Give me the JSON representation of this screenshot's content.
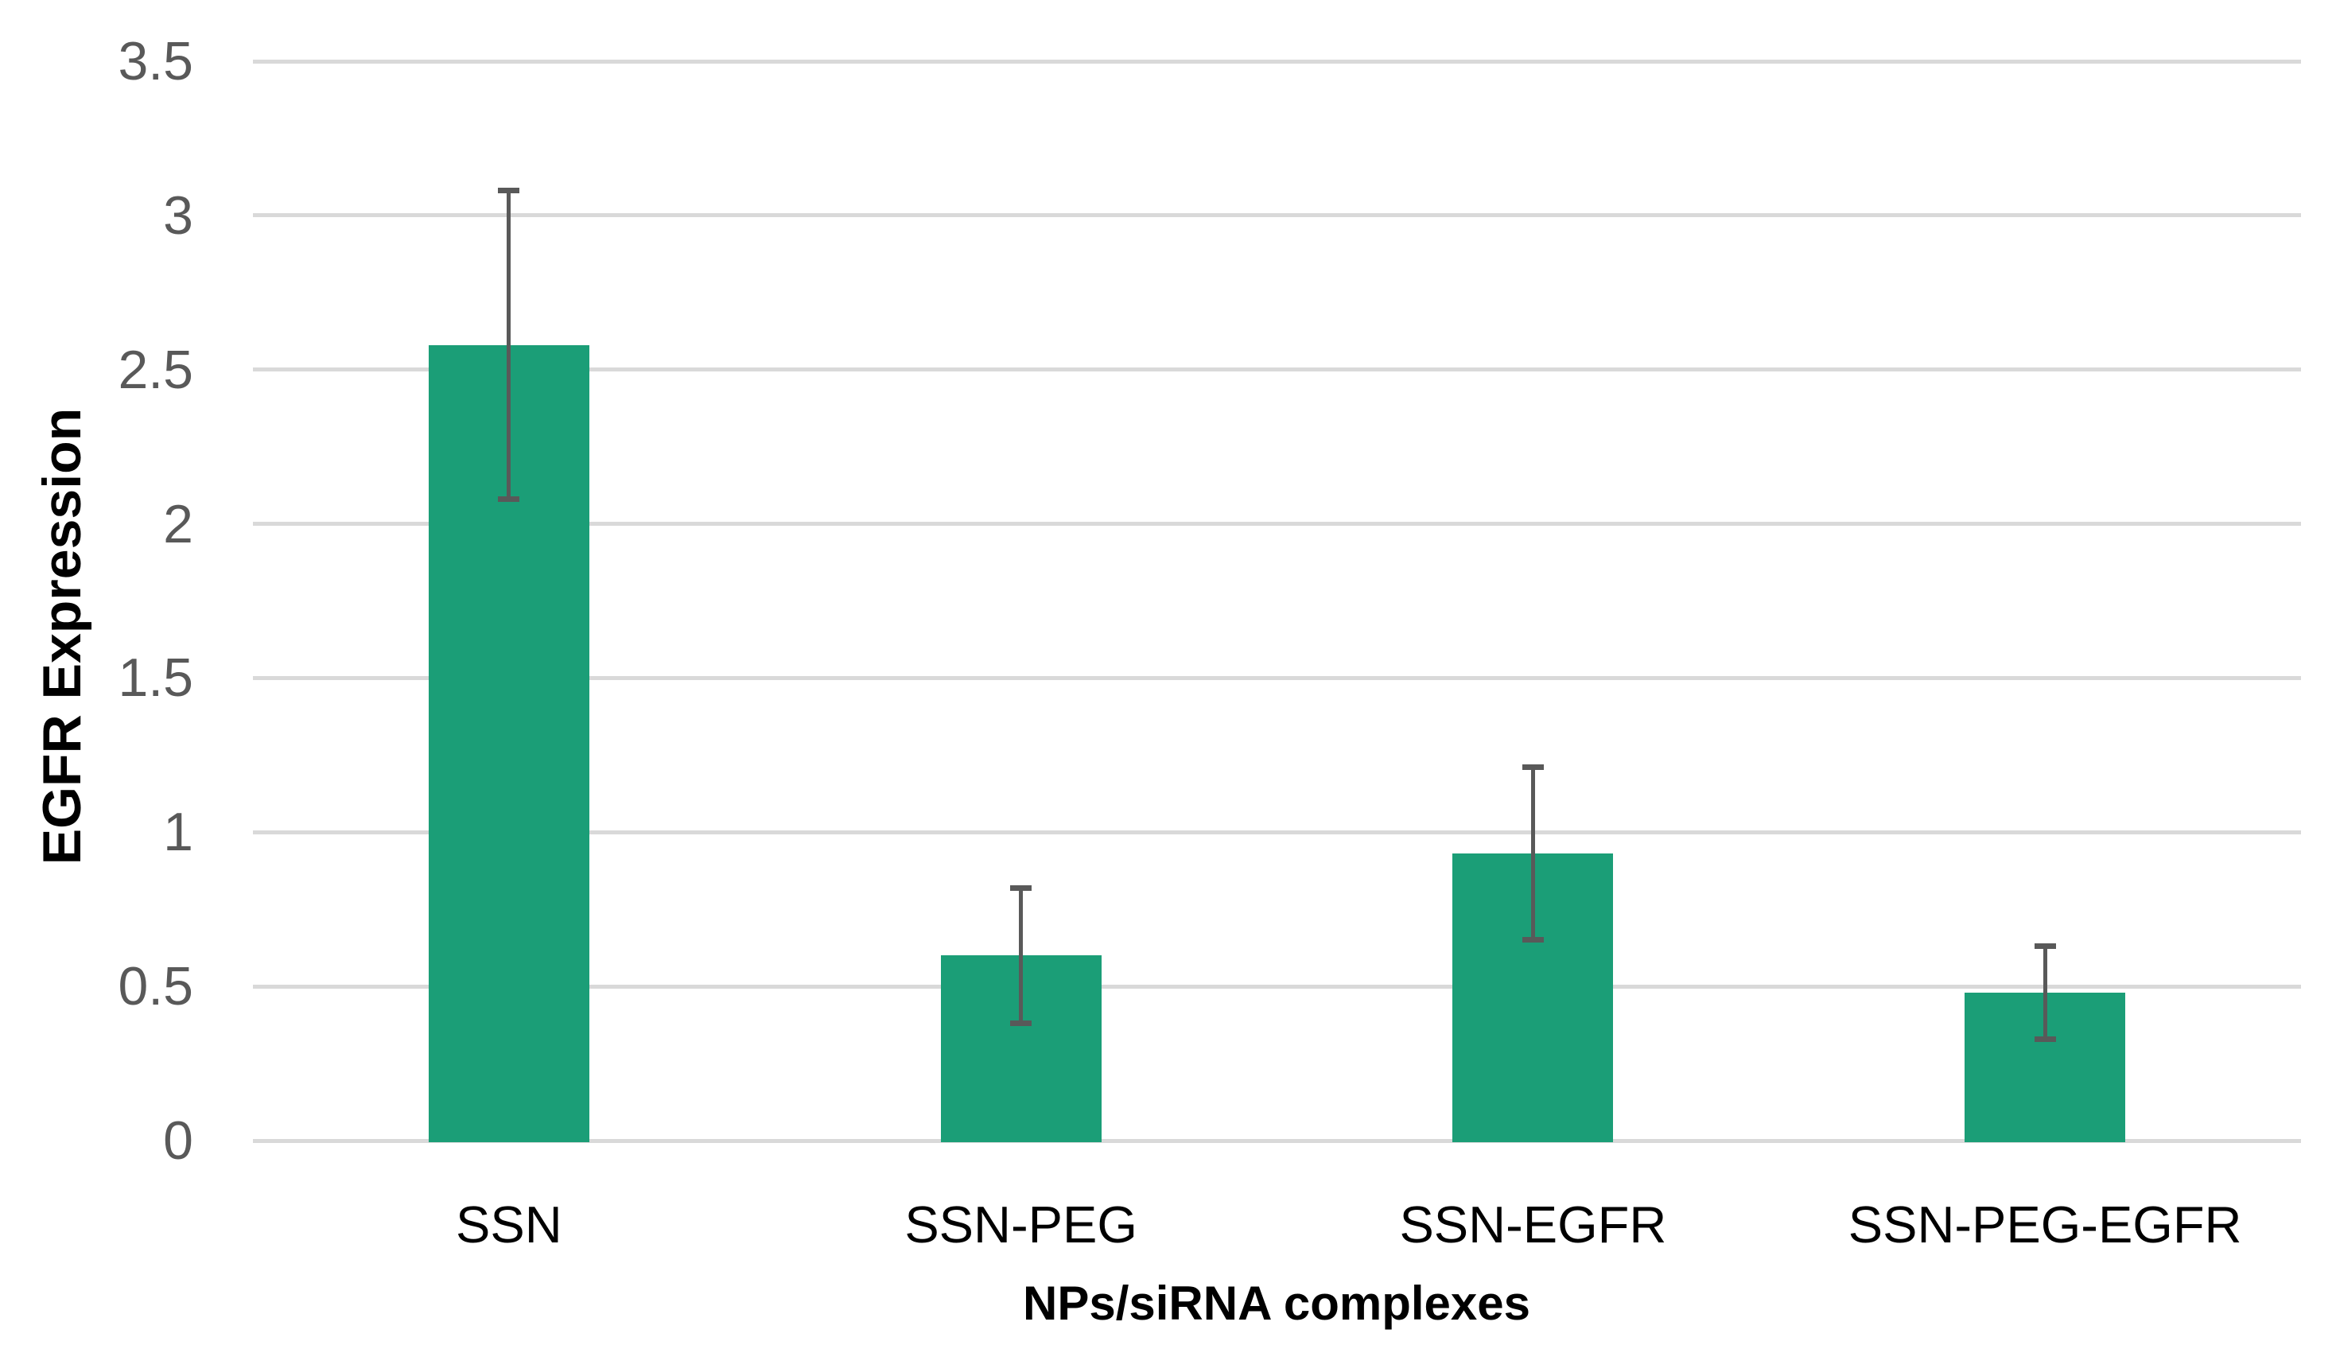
{
  "chart_data": {
    "type": "bar",
    "title": "",
    "xlabel": "NPs/siRNA complexes",
    "ylabel": "EGFR Expression",
    "categories": [
      "SSN",
      "SSN-PEG",
      "SSN-EGFR",
      "SSN-PEG-EGFR"
    ],
    "values": [
      2.58,
      0.6,
      0.93,
      0.48
    ],
    "errors": [
      0.5,
      0.22,
      0.28,
      0.15
    ],
    "ylim": [
      0,
      3.5
    ],
    "ytick_step": 0.5,
    "ytick_labels": [
      "0",
      "0.5",
      "1",
      "1.5",
      "2",
      "2.5",
      "3",
      "3.5"
    ],
    "grid": "horizontal",
    "legend_position": "none",
    "colors": {
      "bar": "#1B9E77",
      "error_bar": "#595959",
      "gridline": "#D9D9D9",
      "tick_label": "#595959",
      "category_label": "#000000",
      "axis_title": "#000000",
      "background": "#FFFFFF"
    }
  }
}
